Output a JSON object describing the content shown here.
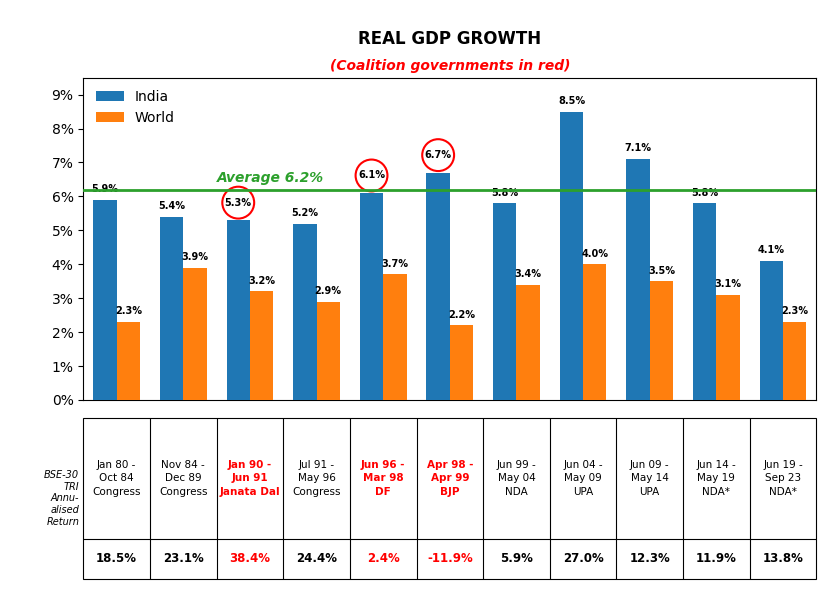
{
  "chart_data": {
    "type": "bar",
    "title": "REAL GDP GROWTH",
    "subtitle": "(Coalition governments in red)",
    "categories": [
      "Jan 80 -\nOct 84\nCongress",
      "Nov 84 -\nDec 89\nCongress",
      "Jan 90 -\nJun 91\nJanata Dal",
      "Jul 91 -\nMay 96\nCongress",
      "Jun 96 -\nMar 98\nDF",
      "Apr 98 -\nApr 99\nBJP",
      "Jun 99 -\nMay 04\nNDA",
      "Jun 04 -\nMay 09\nUPA",
      "Jun 09 -\nMay 14\nUPA",
      "Jun 14 -\nMay 19\nNDA*",
      "Jun 19 -\nSep 23\nNDA*"
    ],
    "series": [
      {
        "name": "India",
        "values": [
          5.9,
          5.4,
          5.3,
          5.2,
          6.1,
          6.7,
          5.8,
          8.5,
          7.1,
          5.8,
          4.1
        ],
        "value_labels": [
          "5.9%",
          "5.4%",
          "5.3%",
          "5.2%",
          "6.1%",
          "6.7%",
          "5.8%",
          "8.5%",
          "7.1%",
          "5.8%",
          "4.1%"
        ]
      },
      {
        "name": "World",
        "values": [
          2.3,
          3.9,
          3.2,
          2.9,
          3.7,
          2.2,
          3.4,
          4.0,
          3.5,
          3.1,
          2.3
        ],
        "value_labels": [
          "2.3%",
          "3.9%",
          "3.2%",
          "2.9%",
          "3.7%",
          "2.2%",
          "3.4%",
          "4.0%",
          "3.5%",
          "3.1%",
          "2.3%"
        ]
      }
    ],
    "ylim": [
      0,
      9.5
    ],
    "yticks": [
      {
        "value": 0,
        "label": "0%"
      },
      {
        "value": 1,
        "label": "1%"
      },
      {
        "value": 2,
        "label": "2%"
      },
      {
        "value": 3,
        "label": "3%"
      },
      {
        "value": 4,
        "label": "4%"
      },
      {
        "value": 5,
        "label": "5%"
      },
      {
        "value": 6,
        "label": "6%"
      },
      {
        "value": 7,
        "label": "7%"
      },
      {
        "value": 8,
        "label": "8%"
      },
      {
        "value": 9,
        "label": "9%"
      }
    ],
    "tick_labels": "y",
    "data_labels": true,
    "legend": "upper left",
    "grid": false,
    "average": {
      "value": 6.2,
      "label": "Average 6.2%"
    },
    "coalition": [
      false,
      false,
      true,
      false,
      true,
      true,
      false,
      false,
      false,
      false,
      false
    ],
    "coalition_color": "red",
    "bse_returns": {
      "header": "BSE-30\nTRI\nAnnu-\nalised\nReturn",
      "values": [
        18.5,
        23.1,
        38.4,
        24.4,
        2.4,
        -11.9,
        5.9,
        27.0,
        12.3,
        11.9,
        13.8
      ],
      "value_labels": [
        "18.5%",
        "23.1%",
        "38.4%",
        "24.4%",
        "2.4%",
        "-11.9%",
        "5.9%",
        "27.0%",
        "12.3%",
        "11.9%",
        "13.8%"
      ]
    }
  }
}
